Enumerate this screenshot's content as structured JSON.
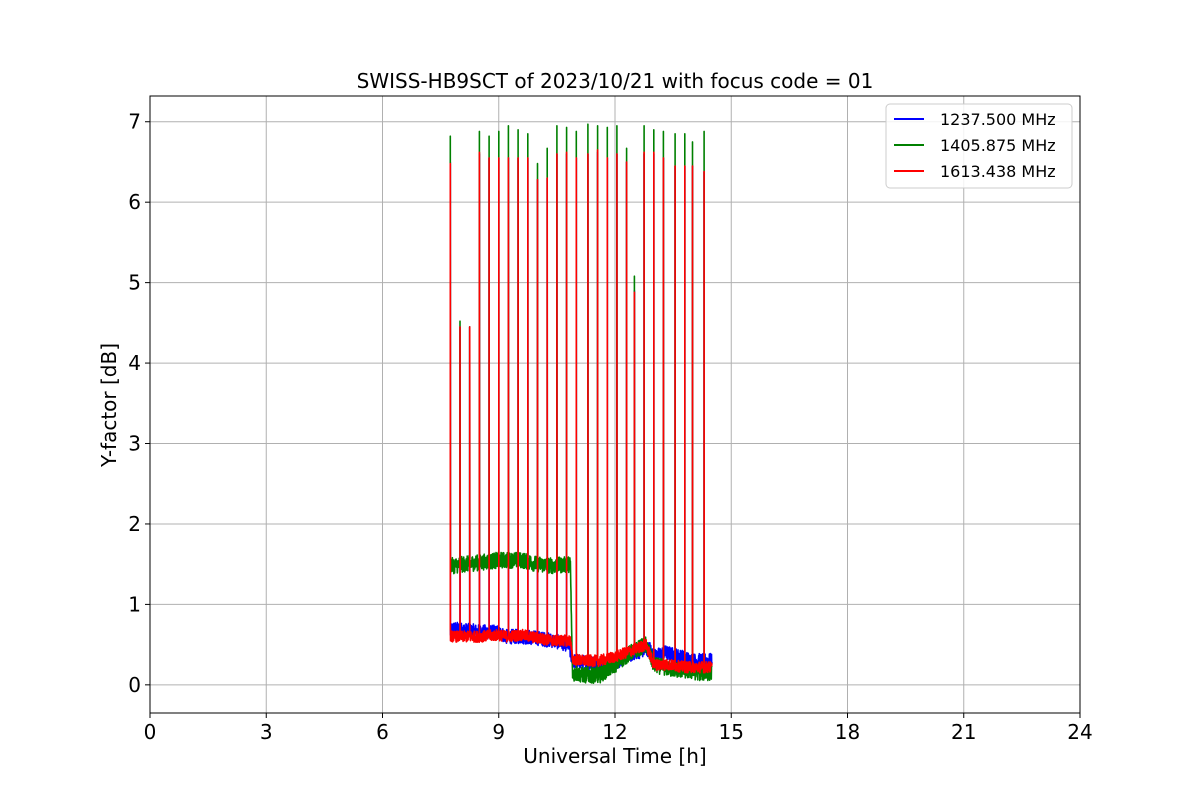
{
  "chart_data": {
    "type": "line",
    "title": "SWISS-HB9SCT of 2023/10/21 with focus code = 01",
    "xlabel": "Universal Time [h]",
    "ylabel": "Y-factor [dB]",
    "xlim": [
      0,
      24
    ],
    "ylim": [
      -0.35,
      7.32
    ],
    "xticks": [
      0,
      3,
      6,
      9,
      12,
      15,
      18,
      21,
      24
    ],
    "yticks": [
      0,
      1,
      2,
      3,
      4,
      5,
      6,
      7
    ],
    "grid": true,
    "legend_position": "top-right",
    "colors": {
      "grid": "#b0b0b0",
      "axis": "#000000"
    },
    "series": [
      {
        "name": "1237.500 MHz",
        "color": "#0000ff",
        "x": [
          7.75,
          7.8,
          8.1,
          8.5,
          9.0,
          9.2,
          9.6,
          10.0,
          10.4,
          10.8,
          10.9,
          11.2,
          11.6,
          11.8,
          12.1,
          12.5,
          12.9,
          13.0,
          13.3,
          13.7,
          14.0,
          14.3,
          14.5
        ],
        "y": [
          0.65,
          0.7,
          0.68,
          0.66,
          0.65,
          0.6,
          0.6,
          0.58,
          0.55,
          0.5,
          0.3,
          0.28,
          0.25,
          0.2,
          0.3,
          0.4,
          0.45,
          0.35,
          0.4,
          0.35,
          0.3,
          0.3,
          0.3
        ],
        "noise": 0.09
      },
      {
        "name": "1405.875 MHz",
        "color": "#008000",
        "x": [
          7.75,
          7.8,
          8.1,
          8.5,
          9.0,
          9.2,
          9.6,
          10.0,
          10.4,
          10.85,
          10.9,
          11.2,
          11.6,
          12.0,
          12.4,
          12.8,
          13.0,
          13.4,
          13.8,
          14.2,
          14.5
        ],
        "y": [
          1.5,
          1.48,
          1.5,
          1.52,
          1.55,
          1.55,
          1.55,
          1.5,
          1.48,
          1.5,
          0.15,
          0.12,
          0.12,
          0.25,
          0.4,
          0.5,
          0.25,
          0.2,
          0.18,
          0.15,
          0.15
        ],
        "noise": 0.1
      },
      {
        "name": "1613.438 MHz",
        "color": "#ff0000",
        "x": [
          7.75,
          7.8,
          8.1,
          8.5,
          9.0,
          9.2,
          9.6,
          10.0,
          10.4,
          10.85,
          10.9,
          11.2,
          11.6,
          12.0,
          12.4,
          12.8,
          13.0,
          13.4,
          13.8,
          14.2,
          14.5
        ],
        "y": [
          0.62,
          0.6,
          0.6,
          0.6,
          0.62,
          0.6,
          0.62,
          0.58,
          0.55,
          0.55,
          0.32,
          0.3,
          0.3,
          0.35,
          0.42,
          0.5,
          0.25,
          0.25,
          0.22,
          0.22,
          0.22
        ],
        "noise": 0.07
      }
    ],
    "spikes": [
      {
        "x": 7.75,
        "peaks": {
          "1237.500 MHz": 6.5,
          "1405.875 MHz": 6.82,
          "1613.438 MHz": 6.48
        }
      },
      {
        "x": 8.0,
        "peaks": {
          "1237.500 MHz": 4.45,
          "1405.875 MHz": 4.52,
          "1613.438 MHz": 4.45
        }
      },
      {
        "x": 8.25,
        "peaks": {
          "1237.500 MHz": 4.45,
          "1405.875 MHz": 4.45,
          "1613.438 MHz": 4.45
        }
      },
      {
        "x": 8.5,
        "peaks": {
          "1237.500 MHz": 6.6,
          "1405.875 MHz": 6.88,
          "1613.438 MHz": 6.62
        }
      },
      {
        "x": 8.75,
        "peaks": {
          "1237.500 MHz": 6.55,
          "1405.875 MHz": 6.82,
          "1613.438 MHz": 6.55
        }
      },
      {
        "x": 9.0,
        "peaks": {
          "1237.500 MHz": 6.55,
          "1405.875 MHz": 6.88,
          "1613.438 MHz": 6.55
        }
      },
      {
        "x": 9.25,
        "peaks": {
          "1237.500 MHz": 6.55,
          "1405.875 MHz": 6.95,
          "1613.438 MHz": 6.55
        }
      },
      {
        "x": 9.5,
        "peaks": {
          "1237.500 MHz": 6.55,
          "1405.875 MHz": 6.9,
          "1613.438 MHz": 6.55
        }
      },
      {
        "x": 9.75,
        "peaks": {
          "1237.500 MHz": 6.55,
          "1405.875 MHz": 6.85,
          "1613.438 MHz": 6.55
        }
      },
      {
        "x": 10.0,
        "peaks": {
          "1237.500 MHz": 6.28,
          "1405.875 MHz": 6.48,
          "1613.438 MHz": 6.28
        }
      },
      {
        "x": 10.25,
        "peaks": {
          "1237.500 MHz": 6.3,
          "1405.875 MHz": 6.67,
          "1613.438 MHz": 6.3
        }
      },
      {
        "x": 10.5,
        "peaks": {
          "1237.500 MHz": 6.6,
          "1405.875 MHz": 6.95,
          "1613.438 MHz": 6.6
        }
      },
      {
        "x": 10.75,
        "peaks": {
          "1237.500 MHz": 6.6,
          "1405.875 MHz": 6.93,
          "1613.438 MHz": 6.62
        }
      },
      {
        "x": 11.0,
        "peaks": {
          "1237.500 MHz": 6.55,
          "1405.875 MHz": 6.88,
          "1613.438 MHz": 6.55
        }
      },
      {
        "x": 11.3,
        "peaks": {
          "1237.500 MHz": 6.6,
          "1405.875 MHz": 6.97,
          "1613.438 MHz": 6.6
        }
      },
      {
        "x": 11.55,
        "peaks": {
          "1237.500 MHz": 6.62,
          "1405.875 MHz": 6.95,
          "1613.438 MHz": 6.65
        }
      },
      {
        "x": 11.8,
        "peaks": {
          "1237.500 MHz": 6.55,
          "1405.875 MHz": 6.93,
          "1613.438 MHz": 6.55
        }
      },
      {
        "x": 12.05,
        "peaks": {
          "1237.500 MHz": 6.6,
          "1405.875 MHz": 6.95,
          "1613.438 MHz": 6.6
        }
      },
      {
        "x": 12.3,
        "peaks": {
          "1237.500 MHz": 6.5,
          "1405.875 MHz": 6.67,
          "1613.438 MHz": 6.5
        }
      },
      {
        "x": 12.5,
        "peaks": {
          "1237.500 MHz": 4.9,
          "1405.875 MHz": 5.08,
          "1613.438 MHz": 4.88
        }
      },
      {
        "x": 12.75,
        "peaks": {
          "1237.500 MHz": 6.6,
          "1405.875 MHz": 6.95,
          "1613.438 MHz": 6.62
        }
      },
      {
        "x": 13.0,
        "peaks": {
          "1237.500 MHz": 6.6,
          "1405.875 MHz": 6.9,
          "1613.438 MHz": 6.62
        }
      },
      {
        "x": 13.25,
        "peaks": {
          "1237.500 MHz": 6.55,
          "1405.875 MHz": 6.88,
          "1613.438 MHz": 6.55
        }
      },
      {
        "x": 13.55,
        "peaks": {
          "1237.500 MHz": 6.45,
          "1405.875 MHz": 6.85,
          "1613.438 MHz": 6.45
        }
      },
      {
        "x": 13.8,
        "peaks": {
          "1237.500 MHz": 6.45,
          "1405.875 MHz": 6.85,
          "1613.438 MHz": 6.45
        }
      },
      {
        "x": 14.0,
        "peaks": {
          "1237.500 MHz": 6.45,
          "1405.875 MHz": 6.75,
          "1613.438 MHz": 6.45
        }
      },
      {
        "x": 14.3,
        "peaks": {
          "1237.500 MHz": 6.38,
          "1405.875 MHz": 6.88,
          "1613.438 MHz": 6.38
        }
      }
    ]
  }
}
